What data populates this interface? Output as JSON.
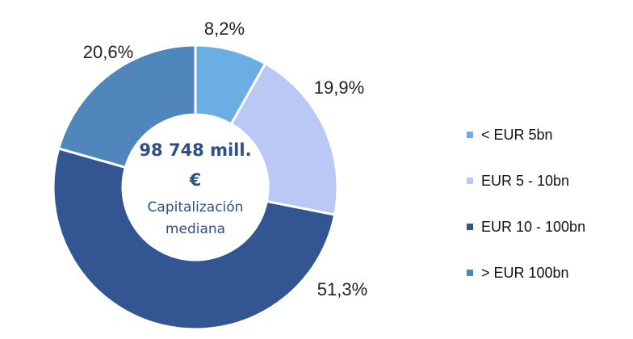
{
  "chart_data": {
    "type": "pie",
    "variant": "donut",
    "categories": [
      "< EUR 5bn",
      "EUR 5 - 10bn",
      "EUR 10 - 100bn",
      "> EUR 100bn"
    ],
    "values": [
      8.2,
      19.9,
      51.3,
      20.6
    ],
    "value_labels": [
      "8,2%",
      "19,9%",
      "51,3%",
      "20,6%"
    ],
    "colors": [
      "#6aaee3",
      "#b9c8f5",
      "#335693",
      "#4f87bd"
    ],
    "legend_position": "right",
    "center_text": {
      "value_line1": "98 748 mill.",
      "value_line2": "€",
      "caption_line1": "Capitalización",
      "caption_line2": "mediana"
    }
  }
}
